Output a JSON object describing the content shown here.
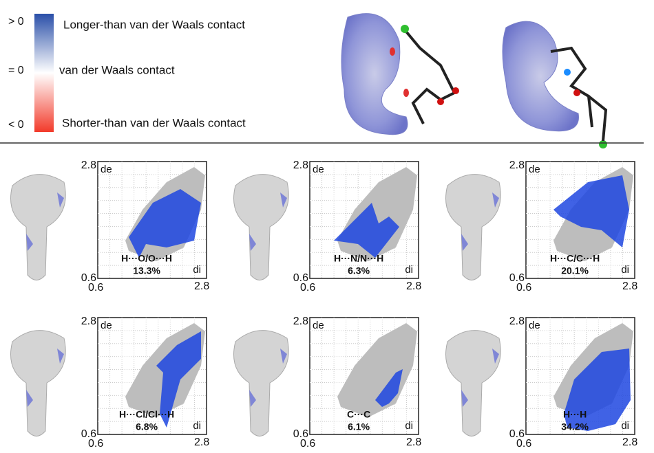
{
  "legend": {
    "scale_labels": [
      "> 0",
      "= 0",
      "< 0"
    ],
    "descriptions": [
      "Longer-than van der Waals contact",
      "van der Waals contact",
      "Shorter-than van der Waals contact"
    ]
  },
  "panels": [
    {
      "label": "H···O/O···H",
      "percent": "13.3%",
      "x_axis": "di",
      "y_axis": "de",
      "x_min": "0.6",
      "x_max": "2.8",
      "y_min": "0.6",
      "y_max": "2.8"
    },
    {
      "label": "H···N/N···H",
      "percent": "6.3%",
      "x_axis": "di",
      "y_axis": "de",
      "x_min": "0.6",
      "x_max": "2.8",
      "y_min": "0.6",
      "y_max": "2.8"
    },
    {
      "label": "H···C/C···H",
      "percent": "20.1%",
      "x_axis": "di",
      "y_axis": "de",
      "x_min": "0.6",
      "x_max": "2.8",
      "y_min": "0.6",
      "y_max": "2.8"
    },
    {
      "label": "H···Cl/Cl···H",
      "percent": "6.8%",
      "x_axis": "di",
      "y_axis": "de",
      "x_min": "0.6",
      "x_max": "2.8",
      "y_min": "0.6",
      "y_max": "2.8"
    },
    {
      "label": "C···C",
      "percent": "6.1%",
      "x_axis": "di",
      "y_axis": "de",
      "x_min": "0.6",
      "x_max": "2.8",
      "y_min": "0.6",
      "y_max": "2.8"
    },
    {
      "label": "H···H",
      "percent": "34.2%",
      "x_axis": "di",
      "y_axis": "de",
      "x_min": "0.6",
      "x_max": "2.8",
      "y_min": "0.6",
      "y_max": "2.8"
    }
  ]
}
